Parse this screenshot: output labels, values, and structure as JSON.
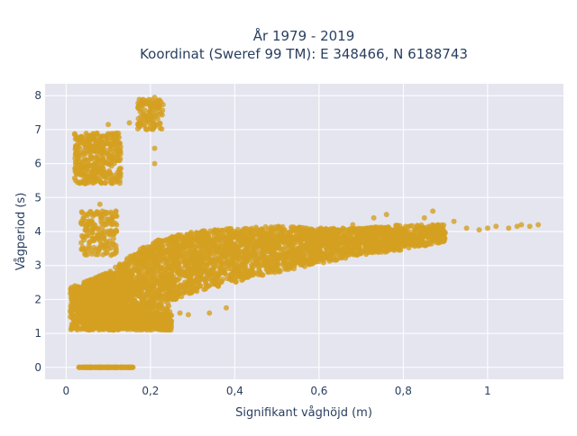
{
  "chart_data": {
    "type": "scatter",
    "title_line1": "År 1979 - 2019",
    "title_line2": "Koordinat (Sweref 99 TM): E 348466, N 6188743",
    "xlabel": "Signifikant våghöjd (m)",
    "ylabel": "Vågperiod (s)",
    "xlim": [
      -0.05,
      1.18
    ],
    "ylim": [
      -0.35,
      8.35
    ],
    "x_ticks": [
      0,
      0.2,
      0.4,
      0.6,
      0.8,
      1
    ],
    "x_tick_labels": [
      "0",
      "0,2",
      "0,4",
      "0,6",
      "0,8",
      "1"
    ],
    "y_ticks": [
      0,
      1,
      2,
      3,
      4,
      5,
      6,
      7,
      8
    ],
    "y_tick_labels": [
      "0",
      "1",
      "2",
      "3",
      "4",
      "5",
      "6",
      "7",
      "8"
    ],
    "grid": true,
    "marker_color": "#D4A021",
    "background_color": "#E5E5F0",
    "series": [
      {
        "clusters": [
          {
            "x_min": 0.03,
            "x_max": 0.16,
            "y_min": 0.0,
            "y_max": 0.0,
            "n": 140
          },
          {
            "x_min": 0.01,
            "x_max": 0.07,
            "y_min": 1.1,
            "y_max": 2.4,
            "n": 300
          },
          {
            "x_min": 0.035,
            "x_max": 0.12,
            "y_min": 3.3,
            "y_max": 4.6,
            "n": 170
          },
          {
            "x_min": 0.02,
            "x_max": 0.13,
            "y_min": 5.4,
            "y_max": 6.9,
            "n": 380
          },
          {
            "x_min": 0.17,
            "x_max": 0.23,
            "y_min": 7.0,
            "y_max": 7.9,
            "n": 110
          },
          {
            "x_min": 0.04,
            "x_max": 0.25,
            "y_min": 1.1,
            "y_max": 1.6,
            "n": 700
          },
          {
            "x_min": 0.04,
            "x_max": 0.25,
            "y_min": 1.6,
            "y_max": 2.6,
            "n": 300
          }
        ],
        "band": [
          {
            "x": 0.04,
            "y_low": 1.4,
            "y_high": 2.5
          },
          {
            "x": 0.1,
            "y_low": 1.5,
            "y_high": 2.8
          },
          {
            "x": 0.2,
            "y_low": 1.7,
            "y_high": 3.7
          },
          {
            "x": 0.3,
            "y_low": 2.2,
            "y_high": 4.0
          },
          {
            "x": 0.4,
            "y_low": 2.5,
            "y_high": 4.1
          },
          {
            "x": 0.5,
            "y_low": 2.8,
            "y_high": 4.15
          },
          {
            "x": 0.6,
            "y_low": 3.05,
            "y_high": 4.1
          },
          {
            "x": 0.7,
            "y_low": 3.3,
            "y_high": 4.1
          },
          {
            "x": 0.8,
            "y_low": 3.45,
            "y_high": 4.2
          },
          {
            "x": 0.9,
            "y_low": 3.7,
            "y_high": 4.2
          }
        ],
        "outliers": [
          [
            0.95,
            4.1
          ],
          [
            0.98,
            4.05
          ],
          [
            1.0,
            4.1
          ],
          [
            1.02,
            4.15
          ],
          [
            1.05,
            4.1
          ],
          [
            1.07,
            4.15
          ],
          [
            1.08,
            4.2
          ],
          [
            1.1,
            4.15
          ],
          [
            1.12,
            4.2
          ],
          [
            0.92,
            4.3
          ],
          [
            0.85,
            4.4
          ],
          [
            0.87,
            4.6
          ],
          [
            0.76,
            4.5
          ],
          [
            0.73,
            4.4
          ],
          [
            0.68,
            4.2
          ],
          [
            0.15,
            7.2
          ],
          [
            0.12,
            6.9
          ],
          [
            0.21,
            6.0
          ],
          [
            0.21,
            6.45
          ],
          [
            0.21,
            7.95
          ],
          [
            0.19,
            7.85
          ],
          [
            0.1,
            7.15
          ],
          [
            0.08,
            4.8
          ],
          [
            0.12,
            4.45
          ],
          [
            0.29,
            1.55
          ],
          [
            0.34,
            1.6
          ],
          [
            0.38,
            1.75
          ],
          [
            0.27,
            1.6
          ],
          [
            0.24,
            1.7
          ]
        ]
      }
    ]
  }
}
